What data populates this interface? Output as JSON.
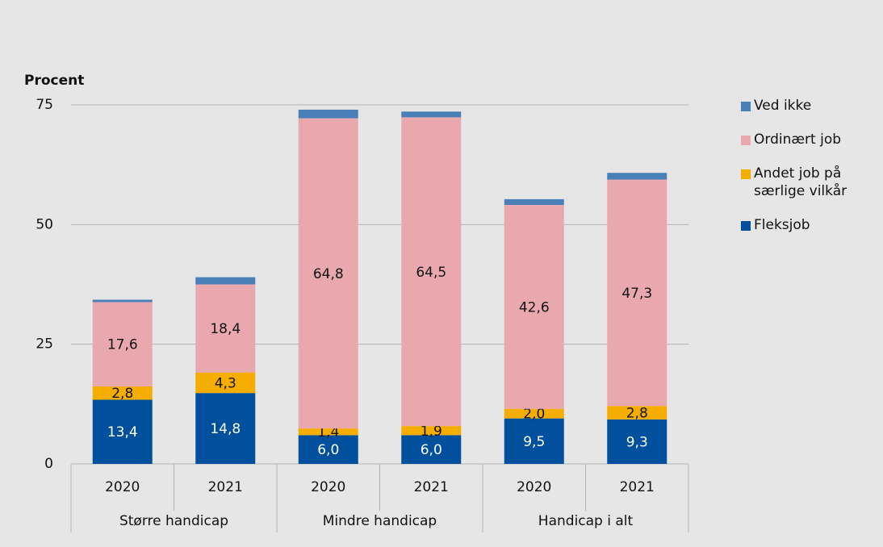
{
  "chart_data": {
    "type": "stacked_bar",
    "y_label": "Procent",
    "categories": [
      "2020",
      "2021",
      "2020",
      "2021",
      "2020",
      "2021"
    ],
    "groups": [
      "Større handicap",
      "Mindre handicap",
      "Handicap i alt"
    ],
    "series": [
      {
        "name": "Fleksjob",
        "color": "#00509e",
        "values": [
          13.4,
          14.8,
          6.0,
          6.0,
          9.5,
          9.3
        ],
        "value_labels": [
          "13,4",
          "14,8",
          "6,0",
          "6,0",
          "9,5",
          "9,3"
        ]
      },
      {
        "name": "Andet job på særlige vilkår",
        "color": "#f5ad00",
        "values": [
          2.8,
          4.3,
          1.4,
          1.9,
          2.0,
          2.8
        ],
        "value_labels": [
          "2,8",
          "4,3",
          "1,4",
          "1,9",
          "2,0",
          "2,8"
        ]
      },
      {
        "name": "Ordinært job",
        "color": "#e8a8ae",
        "values": [
          17.6,
          18.4,
          64.8,
          64.5,
          42.6,
          47.3
        ],
        "value_labels": [
          "17,6",
          "18,4",
          "64,8",
          "64,5",
          "42,6",
          "47,3"
        ]
      },
      {
        "name": "Ved ikke",
        "color": "#4a80b8",
        "values": [
          0.5,
          1.5,
          1.8,
          1.2,
          1.2,
          1.4
        ]
      }
    ],
    "ylim": [
      0,
      75
    ],
    "yticks": [
      0,
      25,
      50,
      75
    ],
    "grid": true,
    "legend": "right"
  }
}
